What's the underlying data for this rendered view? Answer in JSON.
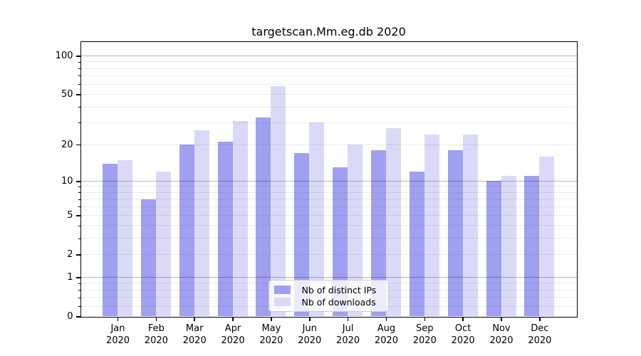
{
  "title": "targetscan.Mm.eg.db 2020",
  "chart_data": {
    "type": "bar",
    "title": "targetscan.Mm.eg.db 2020",
    "categories": [
      "Jan 2020",
      "Feb 2020",
      "Mar 2020",
      "Apr 2020",
      "May 2020",
      "Jun 2020",
      "Jul 2020",
      "Aug 2020",
      "Sep 2020",
      "Oct 2020",
      "Nov 2020",
      "Dec 2020"
    ],
    "series": [
      {
        "name": "Nb of distinct IPs",
        "color": "#a0a0f0",
        "values": [
          14,
          7,
          20,
          21,
          33,
          17,
          13,
          18,
          12,
          18,
          10,
          11
        ]
      },
      {
        "name": "Nb of downloads",
        "color": "#dadaf8",
        "values": [
          15,
          12,
          26,
          31,
          58,
          30,
          20,
          27,
          24,
          24,
          11,
          16
        ]
      }
    ],
    "xlabel": "",
    "ylabel": "",
    "yscale": "symlog (position proportional to log10(1+value))",
    "ylim": [
      0,
      129
    ],
    "yticks": [
      0,
      1,
      2,
      5,
      10,
      20,
      50,
      100
    ],
    "ytick_labels": [
      "0",
      "1",
      "2",
      "5",
      "10",
      "20",
      "50",
      "100"
    ],
    "major_gridlines": [
      1,
      10,
      100
    ],
    "minor_gridlines": [
      0.2,
      0.4,
      0.6,
      0.8,
      2,
      3,
      4,
      5,
      6,
      7,
      8,
      9,
      20,
      30,
      40,
      50,
      60,
      70,
      80,
      90
    ],
    "grid": "on",
    "legend_position": "lower center",
    "legend_items": [
      "Nb of distinct IPs",
      "Nb of downloads"
    ]
  },
  "colors": {
    "bar_distinct_ips": "#a0a0f0",
    "bar_downloads": "#dadaf8",
    "axis": "#000000",
    "grid_minor_rgba": "rgba(0,0,0,0.075)",
    "grid_major_rgba": "rgba(0,0,0,0.28)",
    "legend_border": "#cccccc",
    "background": "#ffffff"
  }
}
